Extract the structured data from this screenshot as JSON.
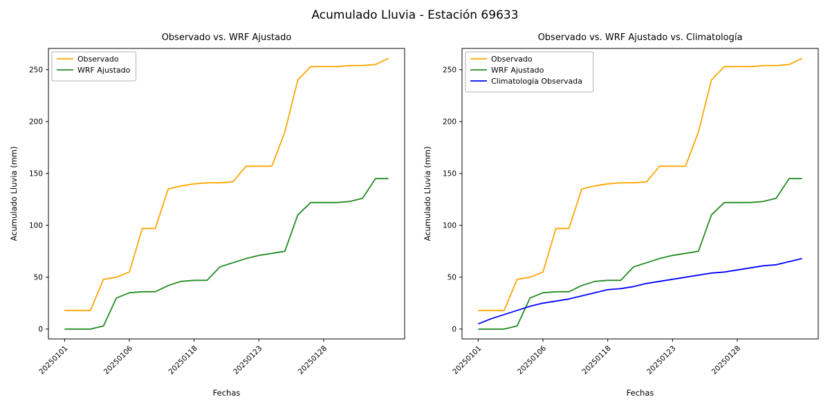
{
  "figure_title": "Acumulado Lluvia - Estación 69633",
  "colors": {
    "observado": "#ffa500",
    "wrf_ajustado": "#228b22",
    "climatologia": "#0000ff",
    "axes": "#000000",
    "legend_border": "#b0b0b0"
  },
  "chart_data": [
    {
      "type": "line",
      "title": "Observado vs. WRF Ajustado",
      "xlabel": "Fechas",
      "ylabel": "Acumulado Lluvia (mm)",
      "yticks": [
        0,
        50,
        100,
        150,
        200,
        250
      ],
      "xtick_positions": [
        0,
        5,
        10,
        15,
        20
      ],
      "xtick_labels": [
        "20250101",
        "20250106",
        "20250118",
        "20250123",
        "20250128"
      ],
      "x_range": [
        -1.25,
        26.25
      ],
      "y_range": [
        -9.5,
        270.5
      ],
      "grid": false,
      "legend_position": "upper-left",
      "series": [
        {
          "name": "Observado",
          "color": "#ffa500",
          "values": [
            18,
            18,
            18,
            48,
            50,
            55,
            97,
            97,
            135,
            138,
            140,
            141,
            141,
            142,
            157,
            157,
            157,
            190,
            240,
            253,
            253,
            253,
            254,
            254,
            255,
            261
          ]
        },
        {
          "name": "WRF Ajustado",
          "color": "#228b22",
          "values": [
            0,
            0,
            0,
            3,
            30,
            35,
            36,
            36,
            42,
            46,
            47,
            47,
            60,
            64,
            68,
            71,
            73,
            75,
            110,
            122,
            122,
            122,
            123,
            126,
            145,
            145
          ]
        }
      ]
    },
    {
      "type": "line",
      "title": "Observado vs. WRF Ajustado vs. Climatología",
      "xlabel": "Fechas",
      "ylabel": "Acumulado Lluvia (mm)",
      "yticks": [
        0,
        50,
        100,
        150,
        200,
        250
      ],
      "xtick_positions": [
        0,
        5,
        10,
        15,
        20
      ],
      "xtick_labels": [
        "20250101",
        "20250106",
        "20250118",
        "20250123",
        "20250128"
      ],
      "x_range": [
        -1.25,
        26.25
      ],
      "y_range": [
        -9.5,
        270.5
      ],
      "grid": false,
      "legend_position": "upper-left",
      "series": [
        {
          "name": "Observado",
          "color": "#ffa500",
          "values": [
            18,
            18,
            18,
            48,
            50,
            55,
            97,
            97,
            135,
            138,
            140,
            141,
            141,
            142,
            157,
            157,
            157,
            190,
            240,
            253,
            253,
            253,
            254,
            254,
            255,
            261
          ]
        },
        {
          "name": "WRF Ajustado",
          "color": "#228b22",
          "values": [
            0,
            0,
            0,
            3,
            30,
            35,
            36,
            36,
            42,
            46,
            47,
            47,
            60,
            64,
            68,
            71,
            73,
            75,
            110,
            122,
            122,
            122,
            123,
            126,
            145,
            145
          ]
        },
        {
          "name": "Climatología Observada",
          "color": "#0000ff",
          "values": [
            5,
            10,
            14,
            18,
            22,
            25,
            27,
            29,
            32,
            35,
            38,
            39,
            41,
            44,
            46,
            48,
            50,
            52,
            54,
            55,
            57,
            59,
            61,
            62,
            65,
            68
          ]
        }
      ]
    }
  ]
}
